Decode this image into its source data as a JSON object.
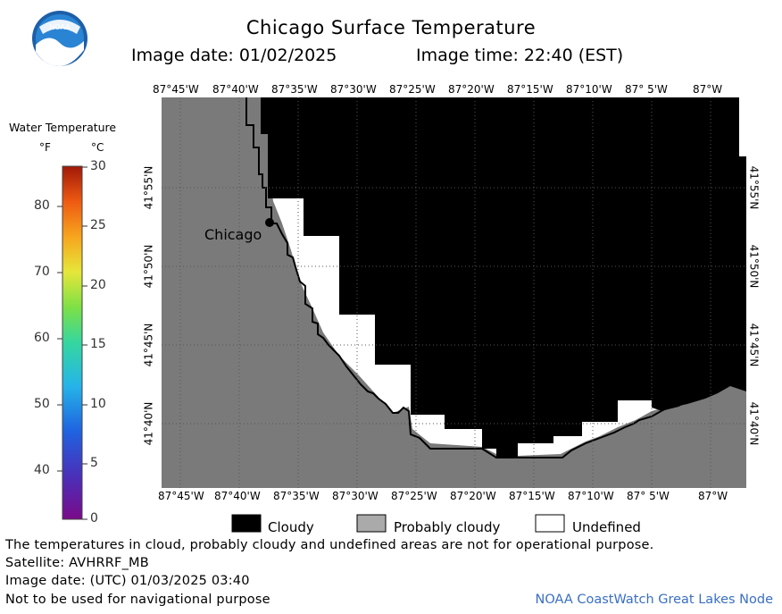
{
  "title": "Chicago Surface Temperature",
  "image_date_label": "Image date: 01/02/2025",
  "image_time_label": "Image time: 22:40 (EST)",
  "logo_icon": "noaa-logo",
  "colors": {
    "cloudy": "#000000",
    "probably_cloudy": "#7a7a7a",
    "undefined": "#ffffff",
    "credit": "#3a6fc2"
  },
  "lon_ticks": [
    "87°45'W",
    "87°40'W",
    "87°35'W",
    "87°30'W",
    "87°25'W",
    "87°20'W",
    "87°15'W",
    "87°10'W",
    "87° 5'W",
    "87°W"
  ],
  "lat_ticks": [
    "41°55'N",
    "41°50'N",
    "41°45'N",
    "41°40'N"
  ],
  "city": {
    "name": "Chicago"
  },
  "legend": {
    "title": "Water Temperature",
    "unit_f": "°F",
    "unit_c": "°C",
    "f_ticks": [
      "80",
      "70",
      "60",
      "50",
      "40"
    ],
    "c_ticks": [
      "30",
      "25",
      "20",
      "15",
      "10",
      "5",
      "0"
    ]
  },
  "key": {
    "cloudy": "Cloudy",
    "probably_cloudy": "Probably cloudy",
    "undefined": "Undefined"
  },
  "footer": {
    "disclaimer": "The temperatures in cloud, probably cloudy and undefined areas are not for operational purpose.",
    "satellite": "Satellite: AVHRRF_MB",
    "utc_date": "Image date: (UTC) 01/03/2025  03:40",
    "nav_warning": "Not to be used for navigational purpose",
    "credit": "NOAA CoastWatch Great Lakes Node"
  }
}
